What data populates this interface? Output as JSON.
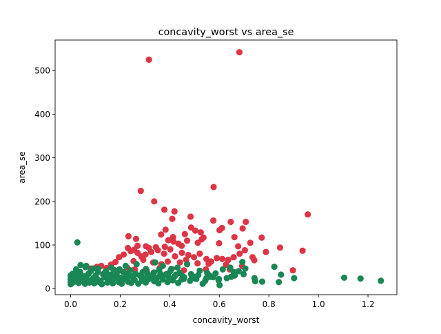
{
  "chart_data": {
    "type": "scatter",
    "title": "concavity_worst vs area_se",
    "xlabel": "concavity_worst",
    "ylabel": "area_se",
    "xlim": [
      -0.0627,
      1.3167
    ],
    "ylim": [
      -13.9,
      570.0
    ],
    "xticks": [
      0.0,
      0.2,
      0.4,
      0.6,
      0.8,
      1.0,
      1.2
    ],
    "xtick_labels": [
      "0.0",
      "0.2",
      "0.4",
      "0.6",
      "0.8",
      "1.0",
      "1.2"
    ],
    "yticks": [
      0,
      100,
      200,
      300,
      400,
      500
    ],
    "ytick_labels": [
      "0",
      "100",
      "200",
      "300",
      "400",
      "500"
    ],
    "grid": false,
    "legend": "none",
    "colors": {
      "red": "#dc3545",
      "green": "#198754"
    },
    "series": [
      {
        "color": "#dc3545",
        "points": [
          [
            0.316,
            525
          ],
          [
            0.681,
            542
          ],
          [
            0.283,
            224
          ],
          [
            0.577,
            233
          ],
          [
            0.337,
            200
          ],
          [
            0.378,
            181
          ],
          [
            0.419,
            177
          ],
          [
            0.41,
            160
          ],
          [
            0.957,
            170
          ],
          [
            0.484,
            165
          ],
          [
            0.707,
            153
          ],
          [
            0.576,
            156
          ],
          [
            0.646,
            153
          ],
          [
            0.611,
            139
          ],
          [
            0.601,
            134
          ],
          [
            0.525,
            129
          ],
          [
            0.486,
            140
          ],
          [
            0.503,
            133
          ],
          [
            0.536,
            117
          ],
          [
            0.383,
            135
          ],
          [
            0.233,
            120
          ],
          [
            0.264,
            114
          ],
          [
            0.365,
            124
          ],
          [
            0.413,
            118
          ],
          [
            0.461,
            125
          ],
          [
            0.694,
            138
          ],
          [
            0.661,
            118
          ],
          [
            0.771,
            117
          ],
          [
            0.599,
            104
          ],
          [
            0.725,
            105
          ],
          [
            0.845,
            94
          ],
          [
            0.936,
            87
          ],
          [
            0.676,
            97
          ],
          [
            0.304,
            97
          ],
          [
            0.316,
            93
          ],
          [
            0.344,
            95
          ],
          [
            0.38,
            96
          ],
          [
            0.394,
            111
          ],
          [
            0.415,
            108
          ],
          [
            0.435,
            103
          ],
          [
            0.47,
            110
          ],
          [
            0.513,
            105
          ],
          [
            0.231,
            93
          ],
          [
            0.242,
            86
          ],
          [
            0.256,
            89
          ],
          [
            0.27,
            82
          ],
          [
            0.285,
            74
          ],
          [
            0.302,
            78
          ],
          [
            0.325,
            84
          ],
          [
            0.352,
            88
          ],
          [
            0.377,
            80
          ],
          [
            0.402,
            90
          ],
          [
            0.421,
            74
          ],
          [
            0.449,
            82
          ],
          [
            0.475,
            77
          ],
          [
            0.498,
            72
          ],
          [
            0.521,
            80
          ],
          [
            0.548,
            68
          ],
          [
            0.567,
            62
          ],
          [
            0.59,
            70
          ],
          [
            0.612,
            68
          ],
          [
            0.636,
            66
          ],
          [
            0.658,
            72
          ],
          [
            0.682,
            80
          ],
          [
            0.703,
            88
          ],
          [
            0.734,
            72
          ],
          [
            0.741,
            65
          ],
          [
            0.788,
            84
          ],
          [
            0.214,
            78
          ],
          [
            0.195,
            72
          ],
          [
            0.181,
            61
          ],
          [
            0.163,
            55
          ],
          [
            0.145,
            47
          ],
          [
            0.124,
            52
          ],
          [
            0.106,
            50
          ],
          [
            0.082,
            46
          ],
          [
            0.254,
            63
          ],
          [
            0.293,
            66
          ],
          [
            0.333,
            60
          ],
          [
            0.366,
            56
          ],
          [
            0.392,
            62
          ],
          [
            0.441,
            60
          ],
          [
            0.466,
            66
          ],
          [
            0.512,
            58
          ],
          [
            0.557,
            57
          ],
          [
            0.627,
            55
          ],
          [
            0.692,
            52
          ],
          [
            0.197,
            42
          ],
          [
            0.228,
            48
          ],
          [
            0.259,
            44
          ],
          [
            0.307,
            41
          ],
          [
            0.359,
            47
          ],
          [
            0.408,
            45
          ],
          [
            0.457,
            42
          ],
          [
            0.546,
            44
          ],
          [
            0.642,
            44
          ],
          [
            0.897,
            42
          ],
          [
            0.27,
            98
          ],
          [
            0.448,
            98
          ],
          [
            0.529,
            113
          ]
        ]
      },
      {
        "color": "#198754",
        "points": [
          [
            0.027,
            106
          ],
          [
            1.104,
            25
          ],
          [
            1.17,
            23
          ],
          [
            1.252,
            18
          ],
          [
            0.902,
            24
          ],
          [
            0.849,
            32
          ],
          [
            0.84,
            15
          ],
          [
            0.822,
            50
          ],
          [
            0.773,
            16
          ],
          [
            0.745,
            17
          ],
          [
            0.705,
            46
          ],
          [
            0.693,
            61
          ],
          [
            0.678,
            40
          ],
          [
            0.644,
            48
          ],
          [
            0.614,
            44
          ],
          [
            0.601,
            8
          ],
          [
            0.585,
            35
          ],
          [
            0.56,
            30
          ],
          [
            0.543,
            18
          ],
          [
            0.521,
            41
          ],
          [
            0.504,
            25
          ],
          [
            0.486,
            33
          ],
          [
            0.47,
            56
          ],
          [
            0.456,
            22
          ],
          [
            0.44,
            36
          ],
          [
            0.431,
            48
          ],
          [
            0.419,
            28
          ],
          [
            0.402,
            40
          ],
          [
            0.385,
            33
          ],
          [
            0.37,
            26
          ],
          [
            0.357,
            43
          ],
          [
            0.341,
            60
          ],
          [
            0.328,
            30
          ],
          [
            0.315,
            22
          ],
          [
            0.304,
            45
          ],
          [
            0.291,
            38
          ],
          [
            0.279,
            30
          ],
          [
            0.266,
            56
          ],
          [
            0.253,
            24
          ],
          [
            0.241,
            42
          ],
          [
            0.23,
            34
          ],
          [
            0.219,
            26
          ],
          [
            0.208,
            20
          ],
          [
            0.197,
            44
          ],
          [
            0.186,
            36
          ],
          [
            0.175,
            28
          ],
          [
            0.164,
            48
          ],
          [
            0.153,
            22
          ],
          [
            0.142,
            40
          ],
          [
            0.132,
            32
          ],
          [
            0.121,
            18
          ],
          [
            0.111,
            46
          ],
          [
            0.101,
            30
          ],
          [
            0.091,
            24
          ],
          [
            0.081,
            40
          ],
          [
            0.072,
            34
          ],
          [
            0.063,
            52
          ],
          [
            0.054,
            28
          ],
          [
            0.046,
            20
          ],
          [
            0.038,
            38
          ],
          [
            0.03,
            30
          ],
          [
            0.022,
            44
          ],
          [
            0.015,
            24
          ],
          [
            0.008,
            34
          ],
          [
            0.002,
            18
          ],
          [
            0.0,
            10
          ],
          [
            0.0,
            15
          ],
          [
            0.0,
            22
          ],
          [
            0.0,
            30
          ],
          [
            0.004,
            12
          ],
          [
            0.01,
            27
          ],
          [
            0.017,
            16
          ],
          [
            0.025,
            20
          ],
          [
            0.033,
            13
          ],
          [
            0.041,
            25
          ],
          [
            0.049,
            17
          ],
          [
            0.058,
            11
          ],
          [
            0.067,
            21
          ],
          [
            0.076,
            14
          ],
          [
            0.085,
            19
          ],
          [
            0.095,
            12
          ],
          [
            0.105,
            23
          ],
          [
            0.115,
            15
          ],
          [
            0.126,
            10
          ],
          [
            0.137,
            26
          ],
          [
            0.148,
            14
          ],
          [
            0.159,
            19
          ],
          [
            0.17,
            12
          ],
          [
            0.182,
            24
          ],
          [
            0.194,
            15
          ],
          [
            0.206,
            11
          ],
          [
            0.218,
            22
          ],
          [
            0.231,
            16
          ],
          [
            0.244,
            13
          ],
          [
            0.258,
            20
          ],
          [
            0.273,
            11
          ],
          [
            0.288,
            18
          ],
          [
            0.303,
            14
          ],
          [
            0.32,
            24
          ],
          [
            0.337,
            17
          ],
          [
            0.354,
            12
          ],
          [
            0.372,
            21
          ],
          [
            0.391,
            15
          ],
          [
            0.412,
            19
          ],
          [
            0.434,
            13
          ],
          [
            0.458,
            26
          ],
          [
            0.482,
            18
          ],
          [
            0.507,
            22
          ],
          [
            0.533,
            11
          ],
          [
            0.562,
            27
          ],
          [
            0.597,
            19
          ],
          [
            0.63,
            24
          ],
          [
            0.662,
            30
          ],
          [
            0.04,
            54
          ],
          [
            0.06,
            49
          ],
          [
            0.09,
            46
          ],
          [
            0.11,
            38
          ],
          [
            0.135,
            35
          ],
          [
            0.16,
            32
          ],
          [
            0.185,
            30
          ],
          [
            0.212,
            38
          ],
          [
            0.238,
            29
          ],
          [
            0.262,
            34
          ],
          [
            0.286,
            26
          ],
          [
            0.312,
            33
          ],
          [
            0.336,
            37
          ],
          [
            0.362,
            34
          ],
          [
            0.393,
            29
          ],
          [
            0.425,
            32
          ],
          [
            0.453,
            28
          ],
          [
            0.49,
            24
          ],
          [
            0.515,
            31
          ],
          [
            0.551,
            36
          ],
          [
            0.575,
            26
          ],
          [
            0.658,
            38
          ],
          [
            0.742,
            24
          ],
          [
            0.027,
            33
          ],
          [
            0.052,
            26
          ],
          [
            0.099,
            23
          ],
          [
            0.149,
            27
          ],
          [
            0.199,
            25
          ],
          [
            0.249,
            28
          ],
          [
            0.299,
            24
          ],
          [
            0.349,
            25
          ],
          [
            0.398,
            23
          ],
          [
            0.448,
            21
          ],
          [
            0.498,
            27
          ],
          [
            0.548,
            24
          ],
          [
            0.598,
            22
          ],
          [
            0.648,
            27
          ],
          [
            0.698,
            33
          ],
          [
            0.372,
            52
          ],
          [
            0.406,
            45
          ],
          [
            0.174,
            43
          ],
          [
            0.222,
            52
          ]
        ]
      }
    ]
  }
}
